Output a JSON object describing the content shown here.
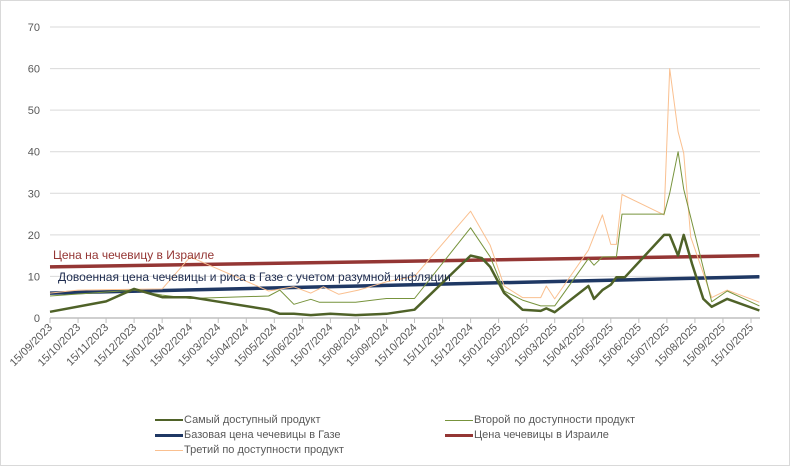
{
  "chart_data": {
    "type": "line",
    "title": "",
    "xlabel": "",
    "ylabel": "",
    "ylim": [
      0,
      70
    ],
    "yticks": [
      0,
      10,
      20,
      30,
      40,
      50,
      60,
      70
    ],
    "grid": true,
    "legend_position": "bottom",
    "x_unit": "months since 15/09/2023",
    "x_tick_labels": [
      "15/09/2023",
      "15/10/2023",
      "15/11/2023",
      "15/12/2023",
      "15/01/2024",
      "15/02/2024",
      "15/03/2024",
      "15/04/2024",
      "15/05/2024",
      "15/06/2024",
      "15/07/2024",
      "15/08/2024",
      "15/09/2024",
      "15/10/2024",
      "15/11/2024",
      "15/12/2024",
      "15/01/2025",
      "15/02/2025",
      "15/03/2025",
      "15/04/2025",
      "15/05/2025",
      "15/06/2025",
      "15/07/2025",
      "15/08/2025",
      "15/09/2025",
      "15/10/2025"
    ],
    "annotations": [
      {
        "text": "Цена  на чечевицу  в Израиле",
        "color": "#943634"
      },
      {
        "text": "Довоенная цена чечевицы  и риса в Газе с учетом разумной инфляции",
        "color": "#1f2d50"
      }
    ],
    "series": [
      {
        "name": "Самый доступный продукт",
        "color": "#4f6228",
        "width": 2.5,
        "x": [
          0,
          2,
          3,
          4,
          5,
          7.8,
          8.2,
          8.7,
          9.3,
          10,
          10.9,
          12,
          13,
          15,
          15.4,
          15.7,
          16.2,
          16.85,
          17.5,
          17.7,
          18,
          19.2,
          19.4,
          19.7,
          20,
          20.2,
          20.5,
          21.9,
          22.1,
          22.4,
          22.6,
          22.9,
          23.3,
          23.6,
          24.15,
          25.3
        ],
        "y": [
          1.5,
          4,
          7,
          5,
          5,
          2,
          1,
          1,
          0.7,
          1,
          0.7,
          1,
          2,
          15,
          14.4,
          12.3,
          6,
          2,
          1.7,
          2.3,
          1.4,
          7.7,
          4.6,
          6.7,
          8,
          9.8,
          9.8,
          20,
          20,
          15,
          20,
          13,
          4.6,
          2.7,
          4.6,
          1.8
        ]
      },
      {
        "name": "Второй по доступности продукт",
        "color": "#77933c",
        "width": 1,
        "x": [
          0,
          3,
          4,
          5,
          7.8,
          8.2,
          8.7,
          9.3,
          9.6,
          10.9,
          12,
          13,
          15,
          15.7,
          16.2,
          16.85,
          17.5,
          18,
          19.2,
          19.4,
          19.7,
          20.2,
          20.4,
          21.9,
          22.1,
          22.4,
          22.6,
          23.6,
          24.15,
          25.3
        ],
        "y": [
          5.3,
          6.7,
          5.5,
          4.7,
          5.3,
          6.7,
          3.3,
          4.5,
          3.8,
          3.8,
          4.7,
          4.7,
          21.7,
          14.7,
          6.5,
          4.3,
          2.9,
          2.9,
          14.3,
          12.7,
          14.7,
          14.7,
          25,
          25,
          30,
          40,
          31,
          3.9,
          6.5,
          2.9
        ]
      },
      {
        "name": "Базовая цена чечевицы в Газе",
        "color": "#1f3864",
        "width": 3.5,
        "x": [
          0,
          25.3
        ],
        "y": [
          6,
          9.9
        ]
      },
      {
        "name": "Цена чечевицы в Израиле",
        "color": "#943634",
        "width": 3.5,
        "x": [
          0,
          25.3
        ],
        "y": [
          12.3,
          15
        ]
      },
      {
        "name": "Третий по доступности продукт",
        "color": "#fac090",
        "width": 1,
        "x": [
          0,
          1,
          4,
          5,
          7.8,
          8.7,
          9.3,
          9.75,
          10.3,
          11,
          12,
          13,
          15,
          15.7,
          16.2,
          16.85,
          17.5,
          17.7,
          18,
          19.2,
          19.7,
          20,
          20.2,
          20.4,
          21.9,
          22.1,
          22.4,
          22.6,
          22.85,
          23.6,
          24.15,
          25.3
        ],
        "y": [
          6,
          6.7,
          7,
          14.7,
          6.5,
          7.5,
          6,
          7.5,
          5.7,
          6.7,
          8.7,
          10,
          25.7,
          17.5,
          7.7,
          4.9,
          4.9,
          7.7,
          4.6,
          16.3,
          24.8,
          17.7,
          17.7,
          29.7,
          24.8,
          60,
          44.8,
          39.7,
          19.5,
          4.9,
          6.7,
          3.8
        ]
      }
    ],
    "legend_order": [
      0,
      1,
      2,
      3,
      4
    ]
  }
}
